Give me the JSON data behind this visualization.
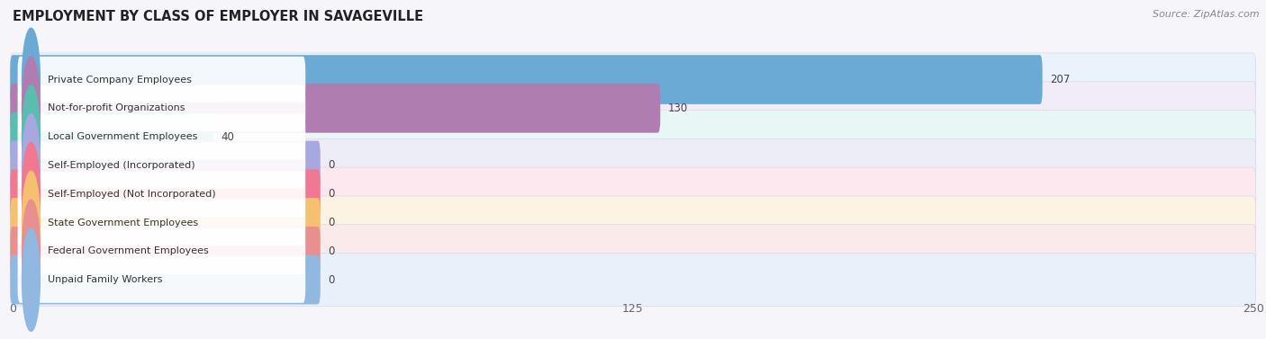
{
  "title": "EMPLOYMENT BY CLASS OF EMPLOYER IN SAVAGEVILLE",
  "source": "Source: ZipAtlas.com",
  "categories": [
    "Private Company Employees",
    "Not-for-profit Organizations",
    "Local Government Employees",
    "Self-Employed (Incorporated)",
    "Self-Employed (Not Incorporated)",
    "State Government Employees",
    "Federal Government Employees",
    "Unpaid Family Workers"
  ],
  "values": [
    207,
    130,
    40,
    0,
    0,
    0,
    0,
    0
  ],
  "bar_colors": [
    "#6aaad4",
    "#b07db0",
    "#5bbcb0",
    "#a8a8e0",
    "#f07890",
    "#f5c070",
    "#e89090",
    "#90b8e0"
  ],
  "bar_bg_colors": [
    "#eaf2fb",
    "#f2ecf7",
    "#e8f7f5",
    "#ededf7",
    "#fce8ee",
    "#fdf3e3",
    "#faeaea",
    "#e8f1fa"
  ],
  "row_border_color": "#d8d8e8",
  "label_bg_color": "#ffffff",
  "xlim": [
    0,
    250
  ],
  "xticks": [
    0,
    125,
    250
  ],
  "background_color": "#f5f5fa",
  "title_fontsize": 10.5,
  "label_fontsize": 8,
  "value_fontsize": 8.5
}
